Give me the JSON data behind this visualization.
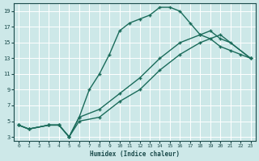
{
  "xlabel": "Humidex (Indice chaleur)",
  "bg_color": "#cde8e8",
  "grid_color": "#b8d8d8",
  "line_color": "#1a6b5a",
  "xlim": [
    -0.5,
    23.5
  ],
  "ylim": [
    2.5,
    20
  ],
  "xticks": [
    0,
    1,
    2,
    3,
    4,
    5,
    6,
    7,
    8,
    9,
    10,
    11,
    12,
    13,
    14,
    15,
    16,
    17,
    18,
    19,
    20,
    21,
    22,
    23
  ],
  "yticks": [
    3,
    5,
    7,
    9,
    11,
    13,
    15,
    17,
    19
  ],
  "line1_x": [
    0,
    1,
    3,
    4,
    5,
    6,
    7,
    8,
    9,
    10,
    11,
    12,
    13,
    14,
    15,
    16,
    17,
    18,
    19,
    20,
    21,
    22,
    23
  ],
  "line1_y": [
    4.5,
    4.0,
    4.5,
    4.5,
    3.0,
    5.5,
    9.0,
    11.0,
    13.5,
    16.5,
    17.5,
    18.0,
    18.5,
    19.5,
    19.5,
    19.0,
    17.5,
    16.0,
    15.5,
    14.5,
    14.0,
    13.5,
    13.0
  ],
  "line2_x": [
    0,
    1,
    3,
    4,
    5,
    6,
    8,
    10,
    12,
    14,
    16,
    18,
    19,
    20,
    21,
    23
  ],
  "line2_y": [
    4.5,
    4.0,
    4.5,
    4.5,
    3.0,
    5.5,
    6.5,
    8.5,
    10.5,
    13.0,
    15.0,
    16.0,
    16.5,
    15.5,
    15.0,
    13.0
  ],
  "line3_x": [
    0,
    1,
    3,
    4,
    5,
    6,
    8,
    10,
    12,
    14,
    16,
    18,
    20,
    23
  ],
  "line3_y": [
    4.5,
    4.0,
    4.5,
    4.5,
    3.0,
    5.0,
    5.5,
    7.5,
    9.0,
    11.5,
    13.5,
    15.0,
    16.0,
    13.0
  ]
}
